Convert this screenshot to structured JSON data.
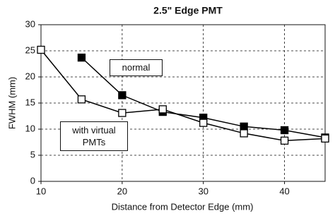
{
  "chart_data": {
    "type": "line",
    "title": "2.5\" Edge PMT",
    "x_label": "Distance from Detector Edge (mm)",
    "y_label": "FWHM (mm)",
    "xlim": [
      10,
      45
    ],
    "xticks": [
      10,
      20,
      30,
      40
    ],
    "ylim": [
      0,
      30
    ],
    "yticks": [
      0,
      5,
      10,
      15,
      20,
      25,
      30
    ],
    "grid": true,
    "series": [
      {
        "name": "normal",
        "color": "#000000",
        "marker": "filled",
        "x": [
          15,
          20,
          25,
          30,
          35,
          40,
          45
        ],
        "values": [
          23.7,
          16.5,
          13.3,
          12.2,
          10.5,
          9.8,
          8.4
        ]
      },
      {
        "name": "with virtual PMTs",
        "color": "#000000",
        "marker": "open",
        "x": [
          10,
          15,
          20,
          25,
          30,
          35,
          40,
          45
        ],
        "values": [
          25.2,
          15.7,
          13.1,
          13.8,
          11.2,
          9.2,
          7.8,
          8.2
        ]
      }
    ]
  }
}
